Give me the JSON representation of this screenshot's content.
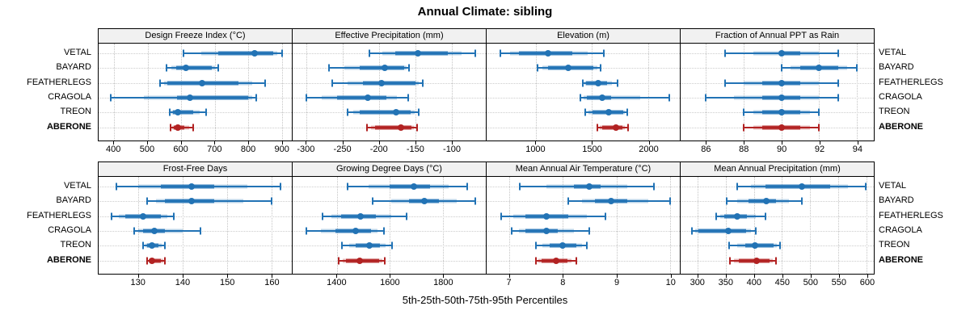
{
  "colors": {
    "series_blue": "#2273B5",
    "series_highlight_red": "#B22222",
    "grid": "#C4C4C4",
    "strip_bg": "#F1F1F1",
    "panel_border": "#000000"
  },
  "chart_data": {
    "type": "scatter",
    "subtype": "percentile-interval-dot (lattice style, 2x4 panels)",
    "title": "Annual Climate: sibling",
    "caption": "5th-25th-50th-75th-95th Percentiles",
    "percentiles": [
      5,
      25,
      50,
      75,
      95
    ],
    "stations": [
      "VETAL",
      "BAYARD",
      "FEATHERLEGS",
      "CRAGOLA",
      "TREON",
      "ABERONE"
    ],
    "highlighted_station": "ABERONE",
    "legend_position": "none",
    "grid": "dotted",
    "panels": [
      {
        "title": "Design Freeze Index (°C)",
        "row": "top",
        "xlim": [
          354,
          930
        ],
        "ticks": [
          400,
          500,
          600,
          700,
          800,
          900
        ],
        "values": [
          [
            608,
            710,
            818,
            875,
            900
          ],
          [
            557,
            585,
            614,
            691,
            710
          ],
          [
            537,
            560,
            663,
            772,
            850
          ],
          [
            390,
            587,
            627,
            800,
            824
          ],
          [
            565,
            575,
            591,
            635,
            674
          ],
          [
            569,
            578,
            591,
            610,
            637
          ]
        ]
      },
      {
        "title": "Effective Precipitation (mm)",
        "row": "top",
        "xlim": [
          -319,
          -53
        ],
        "ticks": [
          -300,
          -250,
          -200,
          -150,
          -100
        ],
        "values": [
          [
            -213,
            -178,
            -146,
            -105,
            -67
          ],
          [
            -269,
            -227,
            -192,
            -165,
            -159
          ],
          [
            -264,
            -222,
            -197,
            -150,
            -140
          ],
          [
            -300,
            -258,
            -216,
            -190,
            -160
          ],
          [
            -243,
            -227,
            -177,
            -156,
            -145
          ],
          [
            -217,
            -205,
            -170,
            -155,
            -148
          ]
        ]
      },
      {
        "title": "Elevation (m)",
        "row": "top",
        "xlim": [
          565,
          2280
        ],
        "ticks": [
          1000,
          1500,
          2000
        ],
        "values": [
          [
            690,
            850,
            1107,
            1325,
            1605
          ],
          [
            1015,
            1110,
            1290,
            1515,
            1575
          ],
          [
            1420,
            1445,
            1552,
            1635,
            1725
          ],
          [
            1395,
            1455,
            1590,
            1670,
            2190
          ],
          [
            1440,
            1505,
            1650,
            1775,
            1815
          ],
          [
            1550,
            1590,
            1712,
            1768,
            1820
          ]
        ]
      },
      {
        "title": "Fraction of Annual PPT as Rain",
        "row": "top",
        "xlim": [
          84.65,
          94.9
        ],
        "ticks": [
          86,
          88,
          90,
          92,
          94
        ],
        "values": [
          [
            87,
            90,
            90,
            91,
            93
          ],
          [
            90,
            91,
            92,
            93,
            94
          ],
          [
            87,
            89,
            90,
            91,
            93
          ],
          [
            86,
            89,
            90,
            91,
            93
          ],
          [
            88,
            89,
            90,
            91,
            92
          ],
          [
            88,
            89,
            90,
            91,
            92
          ]
        ]
      },
      {
        "title": "Frost-Free Days",
        "row": "bottom",
        "xlim": [
          121,
          164.5
        ],
        "ticks": [
          130,
          140,
          150,
          160
        ],
        "values": [
          [
            125,
            135,
            142,
            147,
            162
          ],
          [
            132,
            136,
            142,
            147,
            160
          ],
          [
            124,
            127,
            131,
            135,
            138
          ],
          [
            129,
            131,
            133.5,
            136,
            144
          ],
          [
            131,
            132,
            133,
            134.5,
            136
          ],
          [
            132,
            132.5,
            133,
            135,
            136
          ]
        ]
      },
      {
        "title": "Growing Degree Days (°C)",
        "row": "bottom",
        "xlim": [
          1233,
          1961
        ],
        "ticks": [
          1400,
          1600,
          1800
        ],
        "values": [
          [
            1440,
            1600,
            1690,
            1750,
            1890
          ],
          [
            1535,
            1672,
            1728,
            1785,
            1920
          ],
          [
            1345,
            1415,
            1488,
            1546,
            1662
          ],
          [
            1285,
            1395,
            1470,
            1530,
            1577
          ],
          [
            1420,
            1470,
            1523,
            1562,
            1607
          ],
          [
            1407,
            1435,
            1486,
            1560,
            1580
          ]
        ]
      },
      {
        "title": "Mean Annual Air Temperature (°C)",
        "row": "bottom",
        "xlim": [
          6.58,
          10.18
        ],
        "ticks": [
          7,
          8,
          9,
          10
        ],
        "values": [
          [
            7.2,
            8.2,
            8.5,
            8.7,
            9.7
          ],
          [
            8.1,
            8.6,
            8.9,
            9.2,
            10.0
          ],
          [
            6.85,
            7.3,
            7.7,
            8.1,
            8.8
          ],
          [
            7.05,
            7.3,
            7.7,
            7.9,
            8.5
          ],
          [
            7.5,
            7.75,
            8.0,
            8.25,
            8.45
          ],
          [
            7.5,
            7.6,
            7.87,
            8.08,
            8.25
          ]
        ]
      },
      {
        "title": "Mean Annual Precipitation (mm)",
        "row": "bottom",
        "xlim": [
          270,
          613
        ],
        "ticks": [
          300,
          350,
          400,
          450,
          500,
          550,
          600
        ],
        "values": [
          [
            370,
            420,
            485,
            535,
            598
          ],
          [
            352,
            390,
            422,
            440,
            485
          ],
          [
            333,
            347,
            370,
            387,
            420
          ],
          [
            290,
            301,
            354,
            386,
            403
          ],
          [
            356,
            385,
            402,
            435,
            446
          ],
          [
            357,
            373,
            405,
            428,
            440
          ]
        ]
      }
    ]
  }
}
